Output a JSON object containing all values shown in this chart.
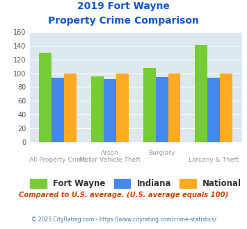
{
  "title_line1": "2019 Fort Wayne",
  "title_line2": "Property Crime Comparison",
  "fort_wayne": [
    130,
    96,
    108,
    141
  ],
  "indiana": [
    94,
    92,
    95,
    94
  ],
  "national": [
    100,
    100,
    100,
    100
  ],
  "bar_colors": {
    "fort_wayne": "#77cc33",
    "indiana": "#4488ee",
    "national": "#ffaa22"
  },
  "ylim": [
    0,
    160
  ],
  "yticks": [
    0,
    20,
    40,
    60,
    80,
    100,
    120,
    140,
    160
  ],
  "plot_bg": "#dde8ee",
  "title_color": "#1155cc",
  "xlabel_top": [
    "",
    "Arson",
    "Burglary",
    ""
  ],
  "xlabel_bot": [
    "All Property Crime",
    "Motor Vehicle Theft",
    "",
    "Larceny & Theft"
  ],
  "xlabel_color": "#999999",
  "footer_note": "Compared to U.S. average. (U.S. average equals 100)",
  "footer_credit": "© 2025 CityRating.com - https://www.cityrating.com/crime-statistics/",
  "legend_labels": [
    "Fort Wayne",
    "Indiana",
    "National"
  ]
}
